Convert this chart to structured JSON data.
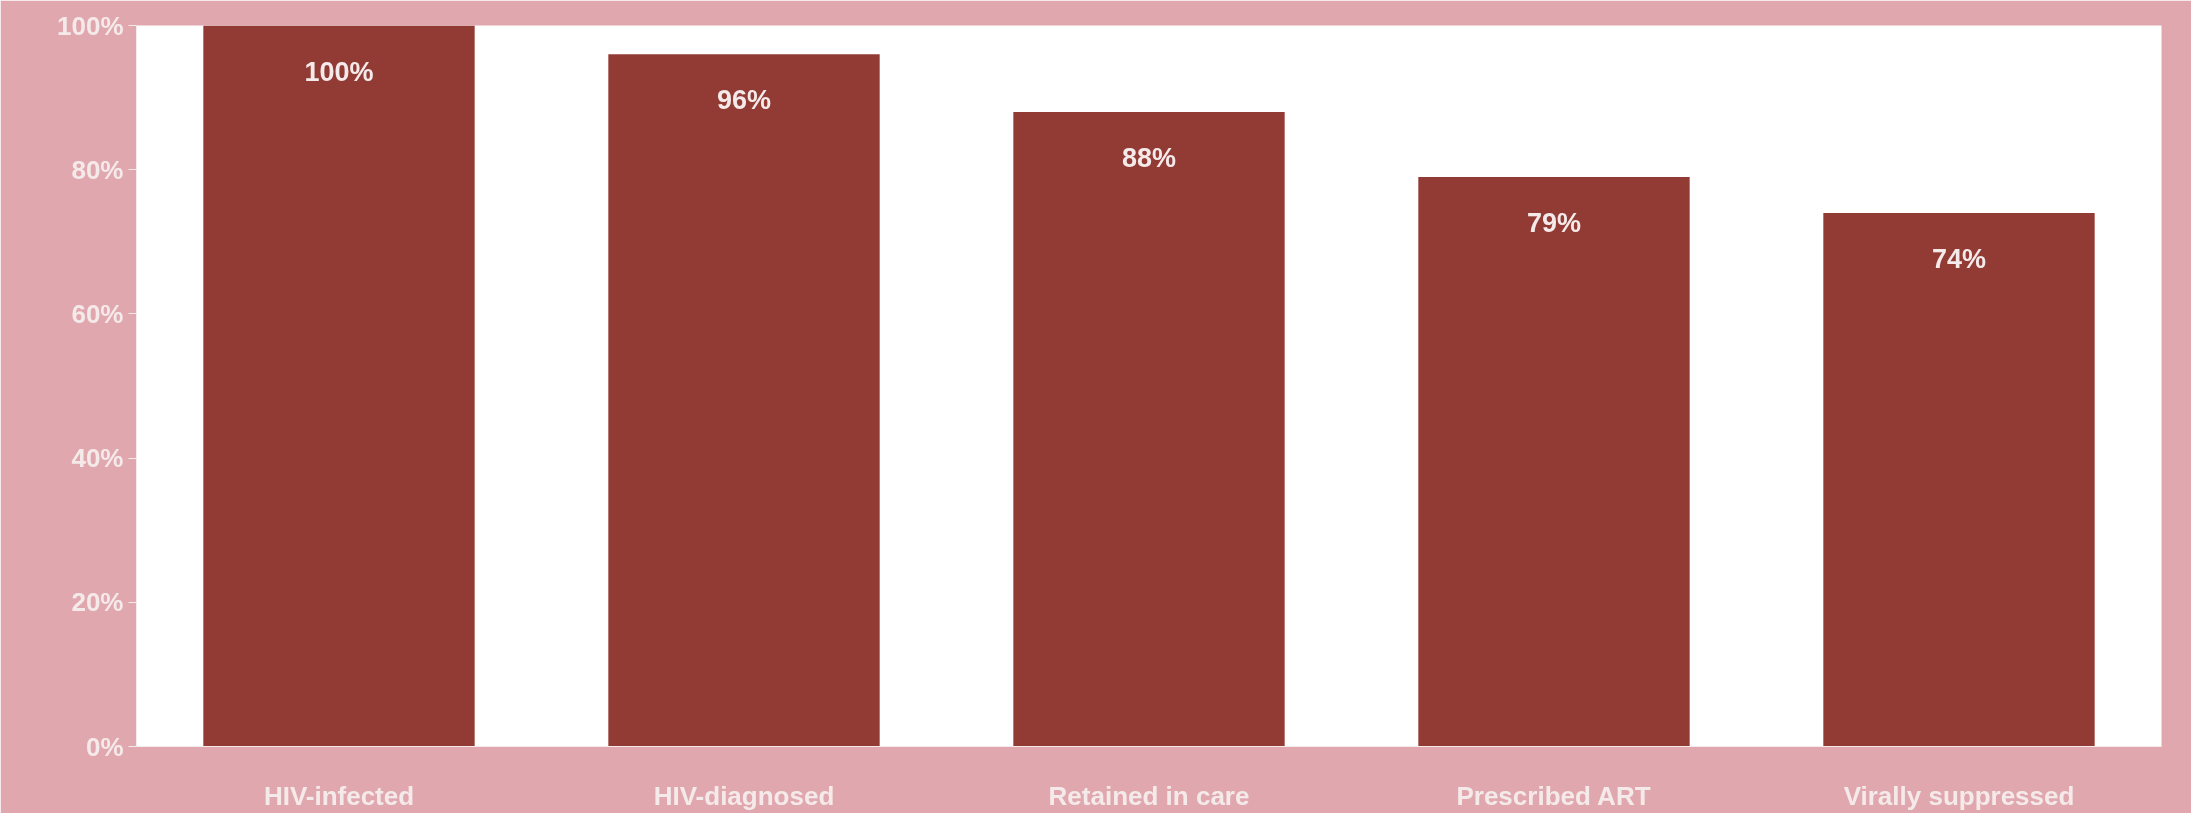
{
  "chart_data": {
    "type": "bar",
    "categories": [
      "HIV-infected",
      "HIV-diagnosed",
      "Retained in care",
      "Prescribed ART",
      "Virally suppressed"
    ],
    "values": [
      100,
      96,
      88,
      79,
      74
    ],
    "color": "#923b35",
    "value_labels": [
      "100%",
      "96%",
      "88%",
      "79%",
      "74%"
    ],
    "ylim": [
      0,
      100
    ],
    "yticks": [
      {
        "value": 0,
        "label": "0%"
      },
      {
        "value": 20,
        "label": "20%"
      },
      {
        "value": 40,
        "label": "40%"
      },
      {
        "value": 60,
        "label": "60%"
      },
      {
        "value": 80,
        "label": "80%"
      },
      {
        "value": 100,
        "label": "100%"
      }
    ],
    "grid": false
  }
}
